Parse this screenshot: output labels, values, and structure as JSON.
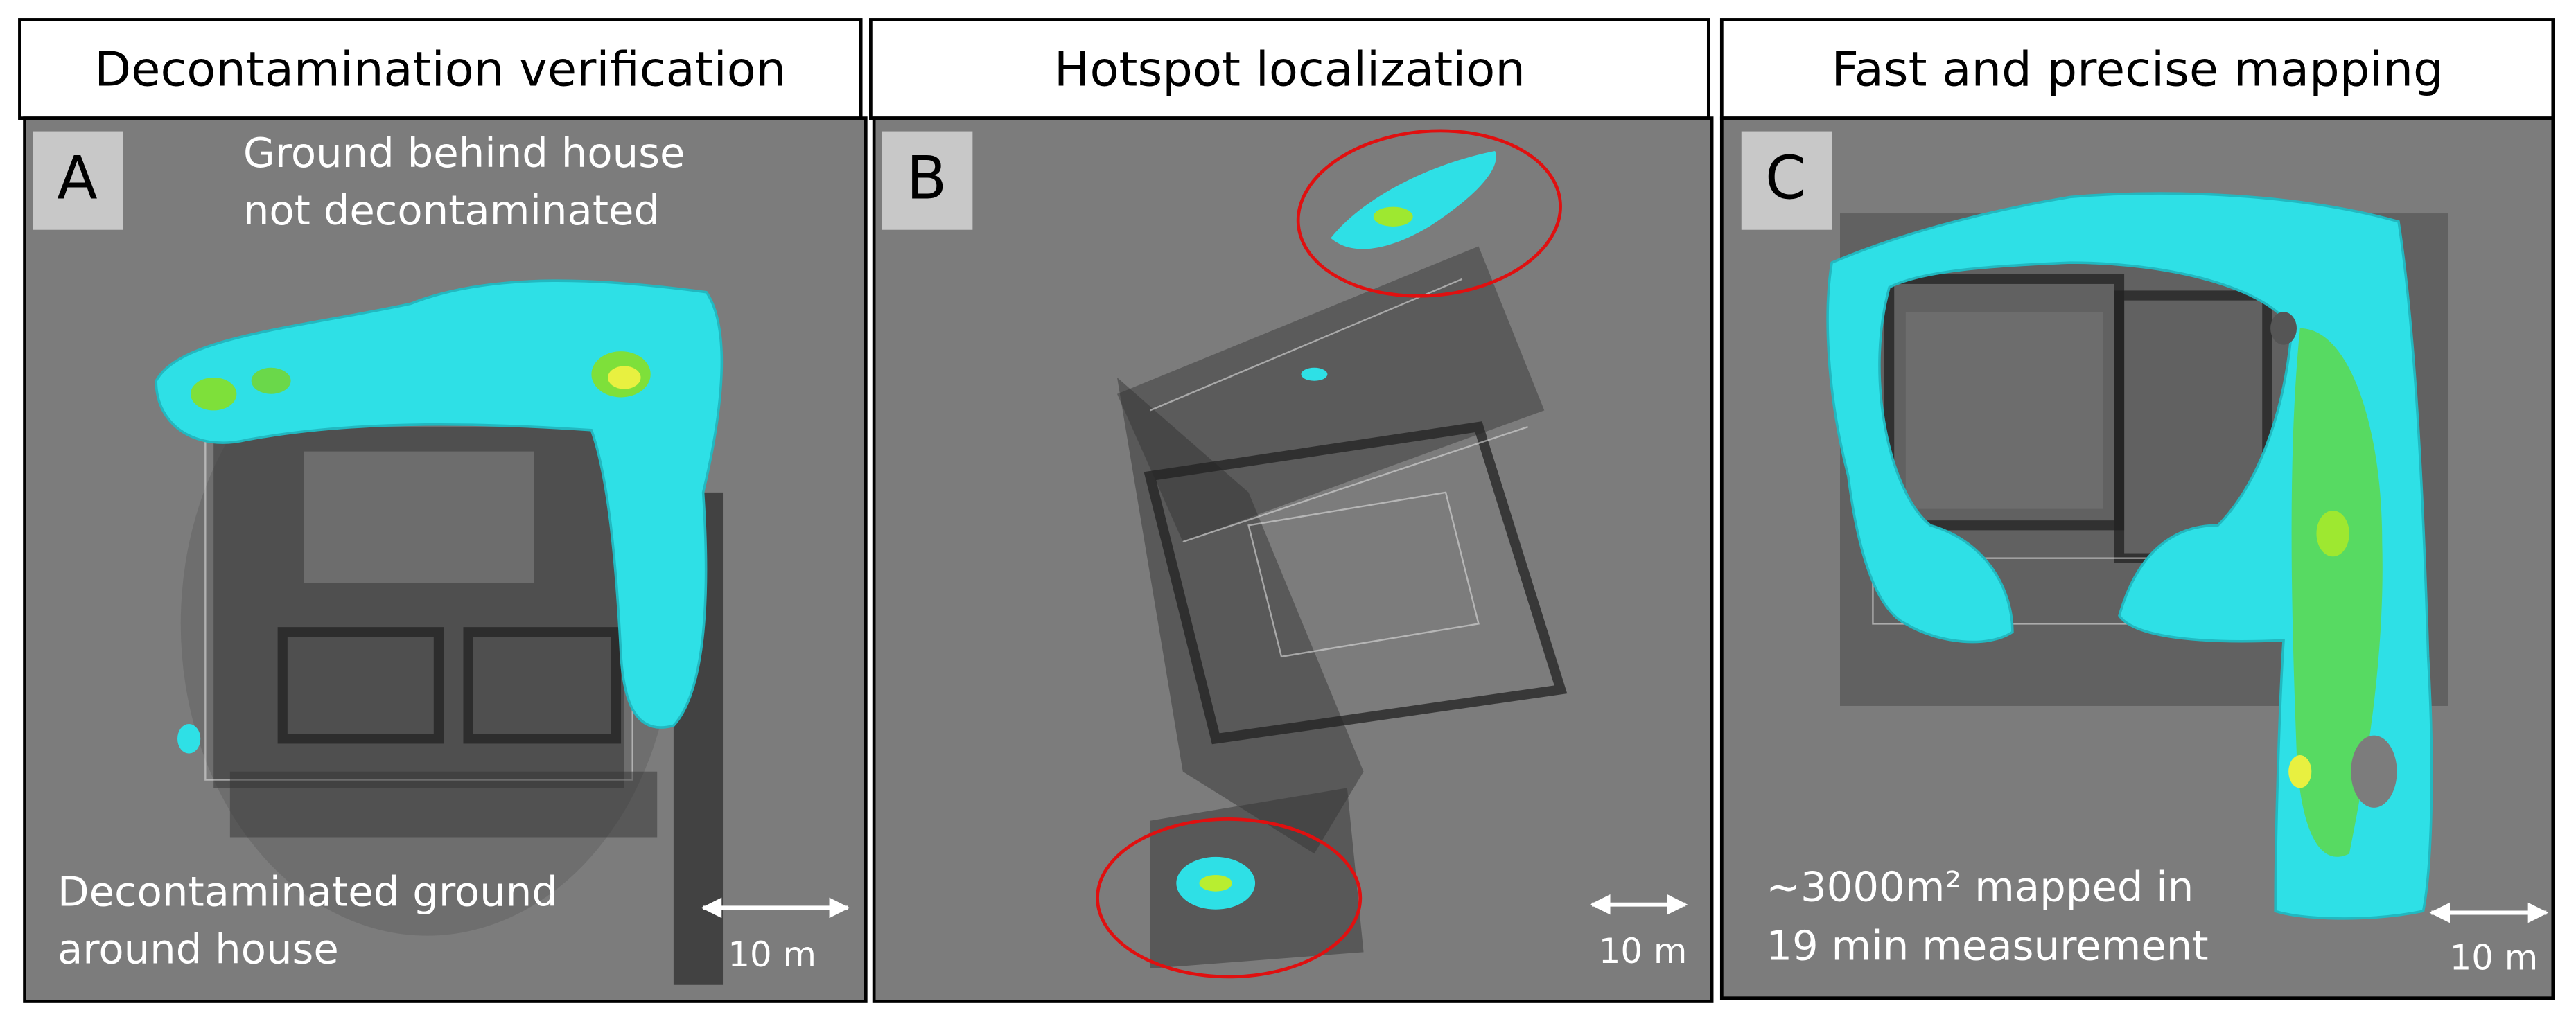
{
  "panels": [
    {
      "title": "Decontamination verification",
      "letter": "A",
      "annotations": [
        [
          "Ground behind house",
          "not decontaminated"
        ],
        [
          "Decontaminated ground",
          "around house"
        ]
      ],
      "scale": "10 m"
    },
    {
      "title": "Hotspot localization",
      "letter": "B",
      "annotations": [],
      "scale": "10 m"
    },
    {
      "title": "Fast and precise mapping",
      "letter": "C",
      "annotations": [
        [
          "~3000m² mapped in",
          "19 min measurement"
        ]
      ],
      "scale": "10 m"
    }
  ]
}
